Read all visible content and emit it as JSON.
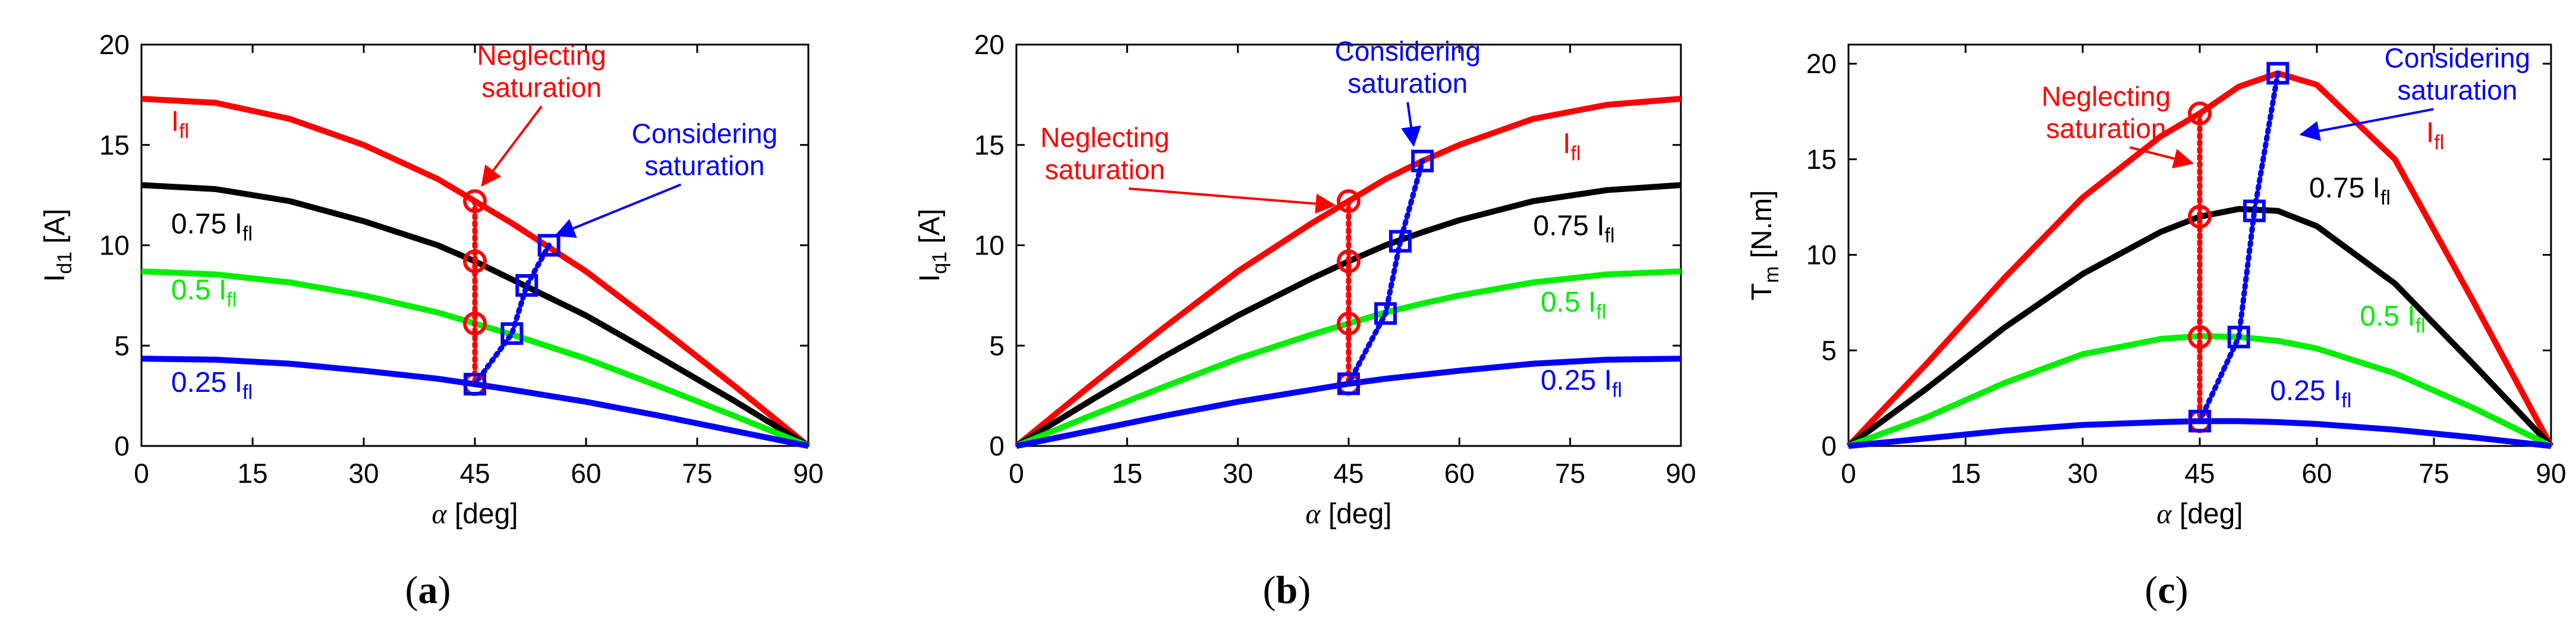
{
  "colors": {
    "ifl": "#ff0000",
    "i075": "#000000",
    "i05": "#00ee00",
    "i025": "#0000ff",
    "neglect": "#ff0000",
    "consider": "#0000ff"
  },
  "chart_data": [
    {
      "type": "line",
      "panel": "a",
      "caption_open": "(",
      "caption_letter": "a",
      "caption_close": ")",
      "ylabel_main": "I",
      "ylabel_sub": "d1",
      "ylabel_unit": " [A]",
      "xlabel_sym": "α",
      "xlabel_unit": " [deg]",
      "xlim": [
        0,
        90
      ],
      "ylim": [
        0,
        20
      ],
      "xticks": [
        0,
        15,
        30,
        45,
        60,
        75,
        90
      ],
      "yticks": [
        0,
        5,
        10,
        15,
        20
      ],
      "x": [
        0,
        10,
        20,
        30,
        40,
        45,
        50,
        55,
        60,
        70,
        80,
        90
      ],
      "series": [
        {
          "name": "Ifl",
          "key": "ifl",
          "values": [
            17.3,
            17.1,
            16.3,
            15.0,
            13.3,
            12.2,
            11.1,
            9.9,
            8.7,
            5.9,
            3.0,
            0
          ]
        },
        {
          "name": "0.75 Ifl",
          "key": "i075",
          "values": [
            13.0,
            12.8,
            12.2,
            11.2,
            10.0,
            9.2,
            8.3,
            7.4,
            6.5,
            4.4,
            2.25,
            0
          ]
        },
        {
          "name": "0.5 Ifl",
          "key": "i05",
          "values": [
            8.7,
            8.55,
            8.15,
            7.5,
            6.65,
            6.1,
            5.55,
            4.95,
            4.35,
            2.95,
            1.5,
            0
          ]
        },
        {
          "name": "0.25 Ifl",
          "key": "i025",
          "values": [
            4.35,
            4.3,
            4.1,
            3.75,
            3.35,
            3.08,
            2.8,
            2.5,
            2.2,
            1.5,
            0.75,
            0
          ]
        }
      ],
      "neglecting_points": {
        "x": [
          45,
          45,
          45,
          45
        ],
        "y": [
          12.2,
          9.2,
          6.1,
          3.08
        ]
      },
      "considering_points": {
        "x": [
          45,
          50,
          52,
          55
        ],
        "y": [
          3.08,
          5.6,
          8.0,
          10.0
        ]
      },
      "labels": [
        {
          "key": "ifl",
          "base": "I",
          "sub": "fl",
          "x": 4,
          "y": 15.7
        },
        {
          "key": "i075",
          "prefix": "0.75 ",
          "base": "I",
          "sub": "fl",
          "x": 4,
          "y": 10.6
        },
        {
          "key": "i05",
          "prefix": "0.5 ",
          "base": "I",
          "sub": "fl",
          "x": 4,
          "y": 7.3
        },
        {
          "key": "i025",
          "prefix": "0.25 ",
          "base": "I",
          "sub": "fl",
          "x": 4,
          "y": 2.7
        }
      ],
      "annotations": [
        {
          "key": "neglect",
          "lines": [
            "Neglecting",
            "saturation"
          ],
          "x": 54,
          "y": 19.0,
          "ax": 46,
          "ay": 13.0
        },
        {
          "key": "consider",
          "lines": [
            "Considering",
            "saturation"
          ],
          "x": 76,
          "y": 15.1,
          "ax": 56,
          "ay": 10.5
        }
      ]
    },
    {
      "type": "line",
      "panel": "b",
      "caption_open": "(",
      "caption_letter": "b",
      "caption_close": ")",
      "ylabel_main": "I",
      "ylabel_sub": "q1",
      "ylabel_unit": " [A]",
      "xlabel_sym": "α",
      "xlabel_unit": " [deg]",
      "xlim": [
        0,
        90
      ],
      "ylim": [
        0,
        20
      ],
      "xticks": [
        0,
        15,
        30,
        45,
        60,
        75,
        90
      ],
      "yticks": [
        0,
        5,
        10,
        15,
        20
      ],
      "x": [
        0,
        10,
        20,
        30,
        40,
        45,
        50,
        55,
        60,
        70,
        80,
        90
      ],
      "series": [
        {
          "name": "Ifl",
          "key": "ifl",
          "values": [
            0,
            3.0,
            5.9,
            8.7,
            11.1,
            12.2,
            13.3,
            14.2,
            15.0,
            16.3,
            17.0,
            17.3
          ]
        },
        {
          "name": "0.75 Ifl",
          "key": "i075",
          "values": [
            0,
            2.25,
            4.45,
            6.5,
            8.35,
            9.2,
            10.0,
            10.65,
            11.25,
            12.2,
            12.75,
            13.0
          ]
        },
        {
          "name": "0.5 Ifl",
          "key": "i05",
          "values": [
            0,
            1.5,
            2.95,
            4.35,
            5.55,
            6.1,
            6.65,
            7.1,
            7.5,
            8.15,
            8.55,
            8.7
          ]
        },
        {
          "name": "0.25 Ifl",
          "key": "i025",
          "values": [
            0,
            0.75,
            1.5,
            2.2,
            2.8,
            3.1,
            3.35,
            3.55,
            3.75,
            4.1,
            4.3,
            4.35
          ]
        }
      ],
      "neglecting_points": {
        "x": [
          45,
          45,
          45,
          45
        ],
        "y": [
          12.2,
          9.2,
          6.1,
          3.1
        ]
      },
      "considering_points": {
        "x": [
          45,
          50,
          52,
          55
        ],
        "y": [
          3.1,
          6.6,
          10.2,
          14.2
        ]
      },
      "labels": [
        {
          "key": "ifl",
          "base": "I",
          "sub": "fl",
          "x": 74,
          "y": 14.6
        },
        {
          "key": "i075",
          "prefix": "0.75 ",
          "base": "I",
          "sub": "fl",
          "x": 70,
          "y": 10.5
        },
        {
          "key": "i05",
          "prefix": "0.5 ",
          "base": "I",
          "sub": "fl",
          "x": 71,
          "y": 6.7
        },
        {
          "key": "i025",
          "prefix": "0.25 ",
          "base": "I",
          "sub": "fl",
          "x": 71,
          "y": 2.8
        }
      ],
      "annotations": [
        {
          "key": "neglect",
          "lines": [
            "Neglecting",
            "saturation"
          ],
          "x": 12,
          "y": 14.9,
          "ax": 43,
          "ay": 12.0
        },
        {
          "key": "consider",
          "lines": [
            "Considering",
            "saturation"
          ],
          "x": 53,
          "y": 19.2,
          "ax": 53.8,
          "ay": 15.0
        }
      ]
    },
    {
      "type": "line",
      "panel": "c",
      "caption_open": "(",
      "caption_letter": "c",
      "caption_close": ")",
      "ylabel_main": "T",
      "ylabel_sub": "m",
      "ylabel_unit": " [N.m]",
      "xlabel_sym": "α",
      "xlabel_unit": " [deg]",
      "xlim": [
        0,
        90
      ],
      "ylim": [
        0,
        21
      ],
      "xticks": [
        0,
        15,
        30,
        45,
        60,
        75,
        90
      ],
      "yticks": [
        0,
        5,
        10,
        15,
        20
      ],
      "x": [
        0,
        10,
        20,
        30,
        40,
        45,
        50,
        55,
        60,
        70,
        80,
        90
      ],
      "series": [
        {
          "name": "Ifl",
          "key": "ifl",
          "values": [
            0,
            4.3,
            8.8,
            13.0,
            16.2,
            17.4,
            18.8,
            19.5,
            18.9,
            15.0,
            7.6,
            0
          ]
        },
        {
          "name": "0.75 Ifl",
          "key": "i075",
          "values": [
            0,
            3.0,
            6.2,
            9.0,
            11.2,
            12.0,
            12.4,
            12.3,
            11.5,
            8.5,
            4.3,
            0
          ]
        },
        {
          "name": "0.5 Ifl",
          "key": "i05",
          "values": [
            0,
            1.5,
            3.3,
            4.8,
            5.6,
            5.75,
            5.7,
            5.5,
            5.1,
            3.8,
            2.0,
            0
          ]
        },
        {
          "name": "0.25 Ifl",
          "key": "i025",
          "values": [
            0,
            0.4,
            0.8,
            1.1,
            1.25,
            1.3,
            1.3,
            1.25,
            1.15,
            0.85,
            0.45,
            0
          ]
        }
      ],
      "neglecting_points": {
        "x": [
          45,
          45,
          45,
          45
        ],
        "y": [
          17.4,
          12.0,
          5.7,
          1.3
        ]
      },
      "considering_points": {
        "x": [
          45,
          50,
          52,
          55
        ],
        "y": [
          1.3,
          5.7,
          12.3,
          19.5
        ]
      },
      "labels": [
        {
          "key": "ifl",
          "base": "I",
          "sub": "fl",
          "x": 74,
          "y": 15.9
        },
        {
          "key": "i075",
          "prefix": "0.75 ",
          "base": "I",
          "sub": "fl",
          "x": 59,
          "y": 13.0
        },
        {
          "key": "i05",
          "prefix": "0.5 ",
          "base": "I",
          "sub": "fl",
          "x": 65.5,
          "y": 6.3
        },
        {
          "key": "i025",
          "prefix": "0.25 ",
          "base": "I",
          "sub": "fl",
          "x": 54,
          "y": 2.4
        }
      ],
      "annotations": [
        {
          "key": "neglect",
          "lines": [
            "Neglecting",
            "saturation"
          ],
          "x": 33,
          "y": 17.8,
          "ax": 44,
          "ay": 14.8
        },
        {
          "key": "consider",
          "lines": [
            "Considering",
            "saturation"
          ],
          "x": 78,
          "y": 19.8,
          "ax": 58,
          "ay": 16.3
        }
      ]
    }
  ]
}
